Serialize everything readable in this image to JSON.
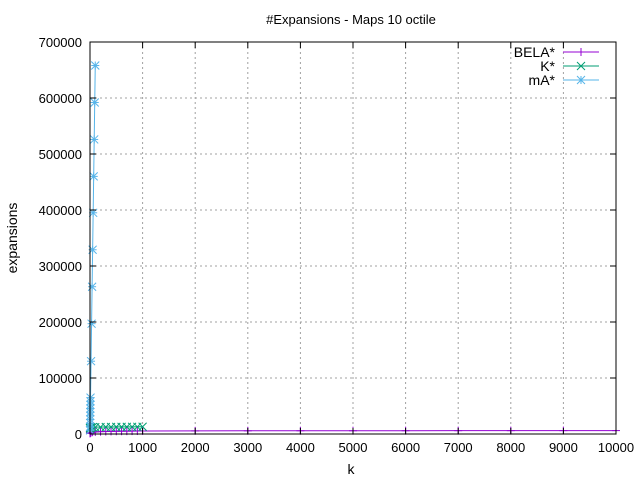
{
  "chart_data": {
    "type": "line",
    "title": "#Expansions - Maps 10 octile",
    "xlabel": "k",
    "ylabel": "expansions",
    "xlim": [
      0,
      10000
    ],
    "ylim": [
      0,
      700000
    ],
    "xticks": [
      0,
      1000,
      2000,
      3000,
      4000,
      5000,
      6000,
      7000,
      8000,
      9000,
      10000
    ],
    "yticks": [
      0,
      100000,
      200000,
      300000,
      400000,
      500000,
      600000,
      700000
    ],
    "grid": true,
    "legend_position": "top-right",
    "series": [
      {
        "name": "BELA*",
        "color": "#9400d3",
        "marker": "plus",
        "x": [
          1,
          2,
          5,
          10,
          20,
          50,
          100,
          200,
          300,
          400,
          500,
          600,
          700,
          800,
          900,
          1000,
          2000,
          3000,
          4000,
          5000,
          6000,
          7000,
          8000,
          9000,
          10000
        ],
        "y": [
          1200,
          1500,
          2000,
          2400,
          2800,
          3300,
          3700,
          4200,
          4500,
          4700,
          4900,
          5000,
          5100,
          5200,
          5300,
          5400,
          5600,
          5700,
          5800,
          5850,
          5900,
          5950,
          6000,
          6050,
          6100
        ]
      },
      {
        "name": "K*",
        "color": "#009e73",
        "marker": "cross",
        "x": [
          1,
          2,
          5,
          10,
          20,
          50,
          100,
          200,
          300,
          400,
          500,
          600,
          700,
          800,
          900,
          1000
        ],
        "y": [
          10000,
          10500,
          11000,
          11500,
          11800,
          12000,
          12200,
          12400,
          12500,
          12600,
          12650,
          12700,
          12750,
          12800,
          12850,
          12900
        ]
      },
      {
        "name": "mA*",
        "color": "#56b4e9",
        "marker": "star",
        "x": [
          1,
          2,
          3,
          4,
          5,
          6,
          7,
          8,
          9,
          10,
          20,
          30,
          40,
          50,
          60,
          70,
          80,
          90,
          100
        ],
        "y": [
          6500,
          13000,
          19500,
          26000,
          32500,
          39000,
          45500,
          52000,
          58500,
          65000,
          130000,
          197000,
          263000,
          329000,
          395000,
          460000,
          526000,
          592000,
          658000
        ]
      }
    ]
  }
}
